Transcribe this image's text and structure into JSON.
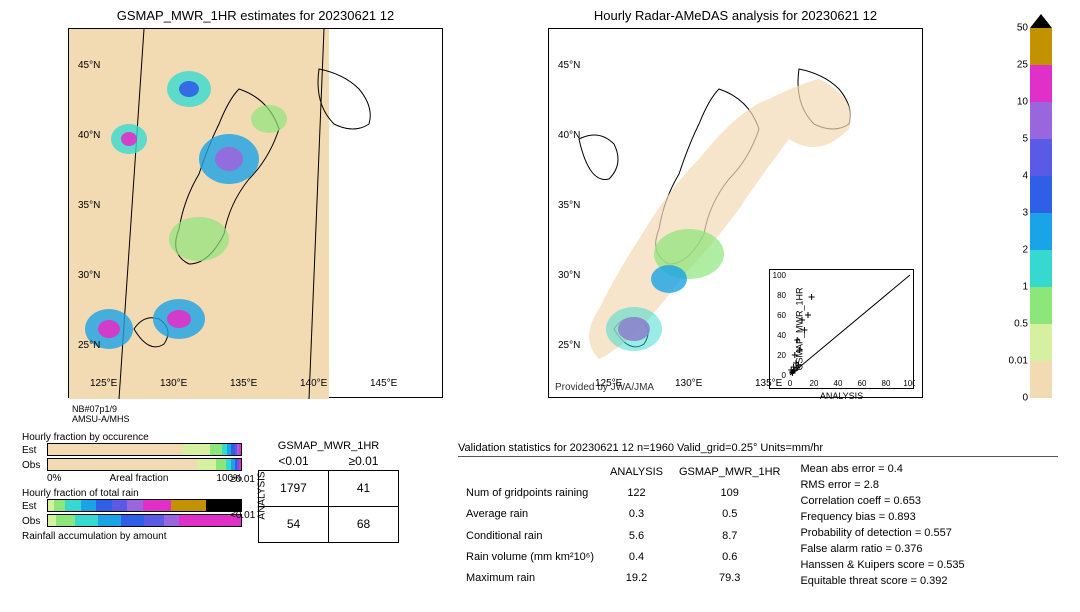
{
  "titles": {
    "left": "GSMAP_MWR_1HR estimates for 20230621 12",
    "right": "Hourly Radar-AMeDAS analysis for 20230621 12"
  },
  "map": {
    "lat_ticks": [
      "45°N",
      "40°N",
      "35°N",
      "30°N",
      "25°N"
    ],
    "lon_ticks_left": [
      "125°E",
      "130°E",
      "135°E",
      "140°E",
      "145°E"
    ],
    "lon_ticks_right": [
      "125°E",
      "130°E",
      "135°E"
    ],
    "provided": "Provided by JWA/JMA",
    "background_left": "#f2dab3",
    "background_right": "#ffffff"
  },
  "colorbar": {
    "ticks": [
      "50",
      "25",
      "10",
      "5",
      "4",
      "3",
      "2",
      "1",
      "0.5",
      "0.01",
      "0"
    ],
    "colors": [
      "#000000",
      "#c29200",
      "#e030c8",
      "#9966dd",
      "#5a5ae6",
      "#2f5fe6",
      "#1aa3e6",
      "#36d9d0",
      "#8de67a",
      "#d5f0a0",
      "#f2dab3"
    ],
    "top_triangle": "#000000"
  },
  "sensors": {
    "line1": "NB#07p1/9",
    "line2": "AMSU-A/MHS"
  },
  "fraction": {
    "title1": "Hourly fraction by occurence",
    "title2": "Hourly fraction of total rain",
    "title3": "Rainfall accumulation by amount",
    "row_labels": [
      "Est",
      "Obs"
    ],
    "axis_left": "0%",
    "axis_mid": "Areal fraction",
    "axis_right": "100%",
    "occ_est_segments": [
      {
        "color": "#f2dab3",
        "width": 70
      },
      {
        "color": "#d5f0a0",
        "width": 14
      },
      {
        "color": "#8de67a",
        "width": 6
      },
      {
        "color": "#36d9d0",
        "width": 3
      },
      {
        "color": "#1aa3e6",
        "width": 2
      },
      {
        "color": "#2f5fe6",
        "width": 2
      },
      {
        "color": "#5a5ae6",
        "width": 1
      },
      {
        "color": "#9966dd",
        "width": 1
      },
      {
        "color": "#e030c8",
        "width": 1
      }
    ],
    "occ_obs_segments": [
      {
        "color": "#f2dab3",
        "width": 77
      },
      {
        "color": "#d5f0a0",
        "width": 10
      },
      {
        "color": "#8de67a",
        "width": 5
      },
      {
        "color": "#36d9d0",
        "width": 3
      },
      {
        "color": "#1aa3e6",
        "width": 2
      },
      {
        "color": "#2f5fe6",
        "width": 1
      },
      {
        "color": "#5a5ae6",
        "width": 1
      },
      {
        "color": "#e030c8",
        "width": 1
      }
    ],
    "rain_est_segments": [
      {
        "color": "#d5f0a0",
        "width": 3
      },
      {
        "color": "#8de67a",
        "width": 6
      },
      {
        "color": "#36d9d0",
        "width": 8
      },
      {
        "color": "#1aa3e6",
        "width": 8
      },
      {
        "color": "#2f5fe6",
        "width": 8
      },
      {
        "color": "#5a5ae6",
        "width": 8
      },
      {
        "color": "#9966dd",
        "width": 8
      },
      {
        "color": "#e030c8",
        "width": 15
      },
      {
        "color": "#c29200",
        "width": 18
      },
      {
        "color": "#000000",
        "width": 18
      }
    ],
    "rain_obs_segments": [
      {
        "color": "#d5f0a0",
        "width": 4
      },
      {
        "color": "#8de67a",
        "width": 10
      },
      {
        "color": "#36d9d0",
        "width": 12
      },
      {
        "color": "#1aa3e6",
        "width": 12
      },
      {
        "color": "#2f5fe6",
        "width": 12
      },
      {
        "color": "#5a5ae6",
        "width": 10
      },
      {
        "color": "#9966dd",
        "width": 8
      },
      {
        "color": "#e030c8",
        "width": 32
      }
    ]
  },
  "contingency": {
    "product": "GSMAP_MWR_1HR",
    "col1": "<0.01",
    "col2": "≥0.01",
    "ylabel": "ANALYSIS",
    "row_lt": "<0.01",
    "row_ge": "≥0.01",
    "cells": [
      [
        "1797",
        "41"
      ],
      [
        "54",
        "68"
      ]
    ]
  },
  "stats": {
    "header": "Validation statistics for 20230621 12  n=1960 Valid_grid=0.25° Units=mm/hr",
    "col_h1": "ANALYSIS",
    "col_h2": "GSMAP_MWR_1HR",
    "rows": [
      {
        "label": "Num of gridpoints raining",
        "a": "122",
        "b": "109"
      },
      {
        "label": "Average rain",
        "a": "0.3",
        "b": "0.5"
      },
      {
        "label": "Conditional rain",
        "a": "5.6",
        "b": "8.7"
      },
      {
        "label": "Rain volume (mm km²10⁶)",
        "a": "0.4",
        "b": "0.6"
      },
      {
        "label": "Maximum rain",
        "a": "19.2",
        "b": "79.3"
      }
    ],
    "right": [
      "Mean abs error =    0.4",
      "RMS error =    2.8",
      "Correlation coeff =  0.653",
      "Frequency bias =  0.893",
      "Probability of detection =  0.557",
      "False alarm ratio =  0.376",
      "Hanssen & Kuipers score =  0.535",
      "Equitable threat score =  0.392"
    ]
  },
  "scatter": {
    "xlabel": "ANALYSIS",
    "ylabel": "GSMAP_MWR_1HR",
    "xlim": [
      0,
      100
    ],
    "ylim": [
      0,
      100
    ],
    "ticks": [
      "0",
      "20",
      "40",
      "60",
      "80",
      "100"
    ],
    "points": [
      [
        2,
        3
      ],
      [
        3,
        8
      ],
      [
        5,
        12
      ],
      [
        4,
        20
      ],
      [
        8,
        25
      ],
      [
        6,
        35
      ],
      [
        12,
        45
      ],
      [
        10,
        55
      ],
      [
        15,
        60
      ],
      [
        18,
        78
      ],
      [
        4,
        5
      ],
      [
        6,
        7
      ],
      [
        3,
        4
      ],
      [
        2,
        2
      ],
      [
        1,
        5
      ],
      [
        7,
        10
      ]
    ],
    "marker": "+"
  }
}
